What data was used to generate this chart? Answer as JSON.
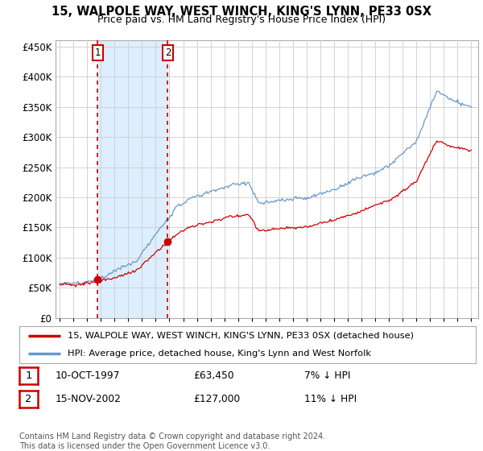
{
  "title": "15, WALPOLE WAY, WEST WINCH, KING'S LYNN, PE33 0SX",
  "subtitle": "Price paid vs. HM Land Registry's House Price Index (HPI)",
  "legend_line1": "15, WALPOLE WAY, WEST WINCH, KING'S LYNN, PE33 0SX (detached house)",
  "legend_line2": "HPI: Average price, detached house, King's Lynn and West Norfolk",
  "table_row1_date": "10-OCT-1997",
  "table_row1_price": "£63,450",
  "table_row1_hpi": "7% ↓ HPI",
  "table_row2_date": "15-NOV-2002",
  "table_row2_price": "£127,000",
  "table_row2_hpi": "11% ↓ HPI",
  "footer": "Contains HM Land Registry data © Crown copyright and database right 2024.\nThis data is licensed under the Open Government Licence v3.0.",
  "sale1_year": 1997.78,
  "sale1_price": 63450,
  "sale2_year": 2002.88,
  "sale2_price": 127000,
  "vline1_year": 1997.78,
  "vline2_year": 2002.88,
  "price_color": "#cc0000",
  "hpi_color": "#6699cc",
  "vline_color": "#cc0000",
  "shade_color": "#ddeeff",
  "background_plot": "#ffffff",
  "grid_color": "#cccccc",
  "ylim_max": 460000,
  "xlim_min": 1994.7,
  "xlim_max": 2025.5,
  "yticks": [
    0,
    50000,
    100000,
    150000,
    200000,
    250000,
    300000,
    350000,
    400000,
    450000
  ]
}
